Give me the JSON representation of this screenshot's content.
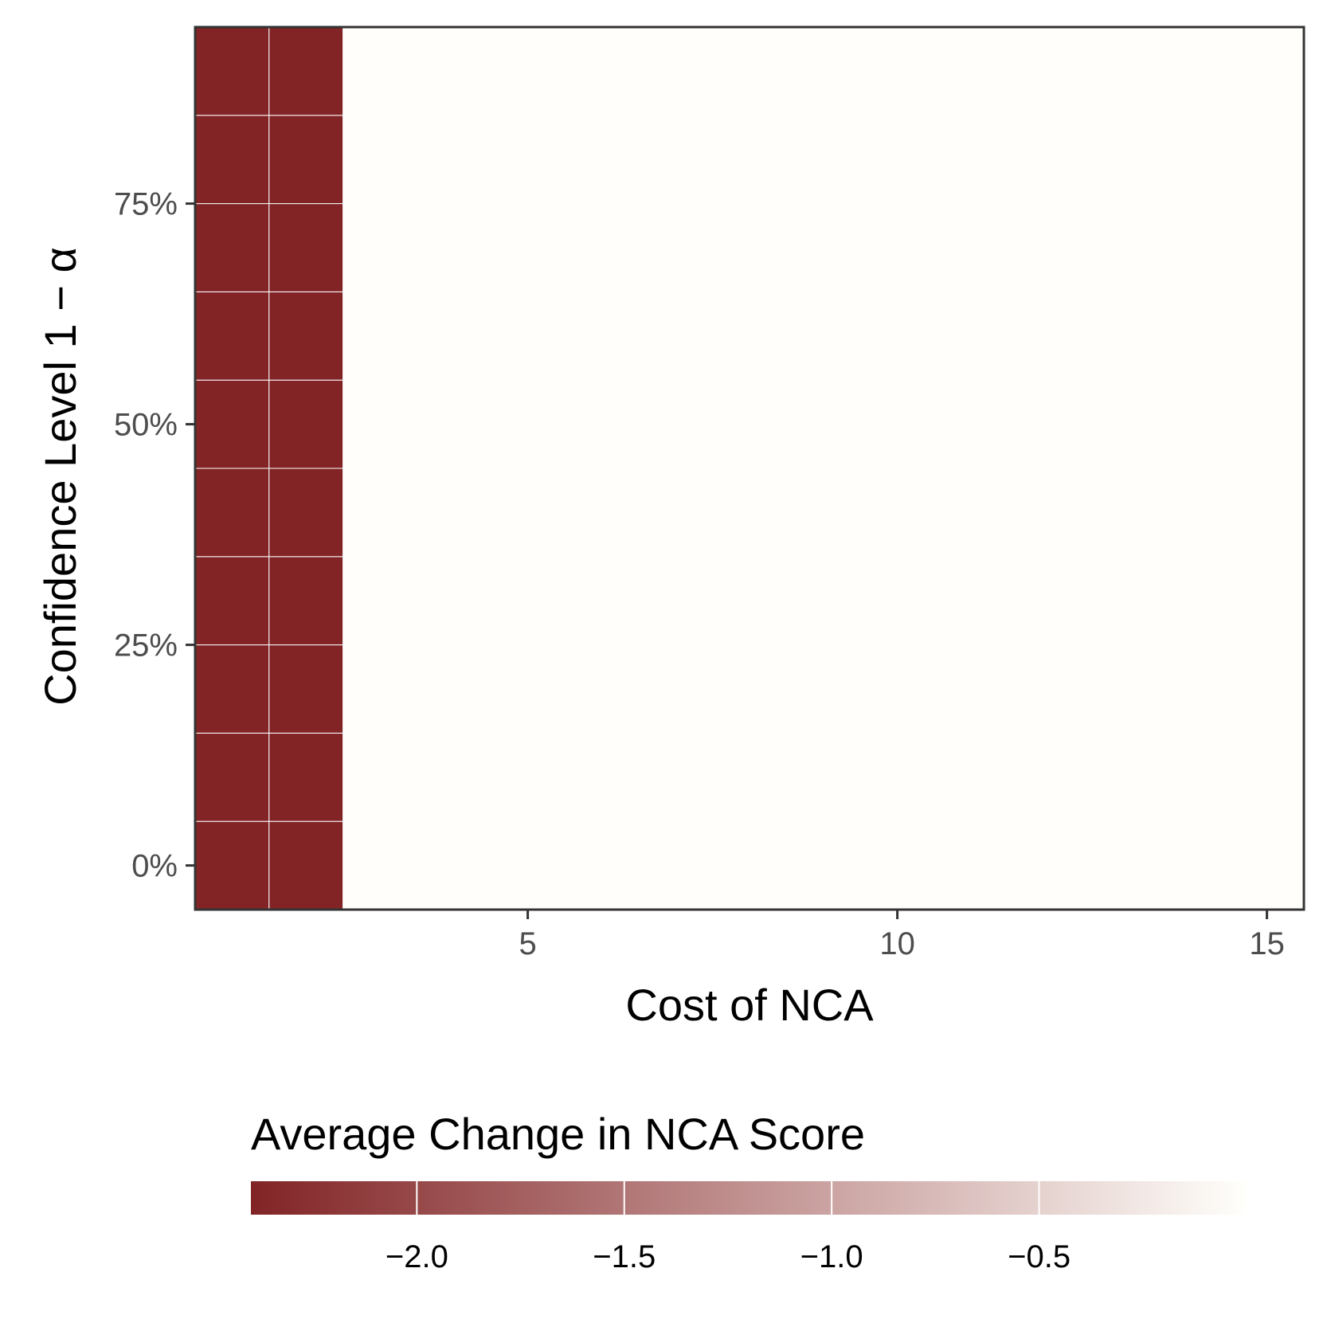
{
  "chart_data": {
    "type": "heatmap",
    "title": "",
    "xlabel": "Cost of NCA",
    "ylabel": "Confidence Level 1 − α",
    "xlim": [
      0.5,
      15.5
    ],
    "ylim": [
      -0.05,
      0.95
    ],
    "x_ticks": [
      5,
      10,
      15
    ],
    "x_tick_labels": [
      "5",
      "10",
      "15"
    ],
    "y_ticks": [
      0,
      0.25,
      0.5,
      0.75
    ],
    "y_tick_labels": [
      "0%",
      "25%",
      "50%",
      "75%"
    ],
    "x": [
      1,
      2
    ],
    "y": [
      0,
      0.1,
      0.2,
      0.3,
      0.4,
      0.5,
      0.6,
      0.7,
      0.8,
      0.9
    ],
    "values": [
      [
        -2.4,
        -2.4
      ],
      [
        -2.4,
        -2.4
      ],
      [
        -2.4,
        -2.4
      ],
      [
        -2.4,
        -2.4
      ],
      [
        -2.4,
        -2.4
      ],
      [
        -2.4,
        -2.4
      ],
      [
        -2.4,
        -2.4
      ],
      [
        -2.4,
        -2.4
      ],
      [
        -2.4,
        -2.4
      ],
      [
        -2.4,
        -2.4
      ]
    ],
    "background_value": 0,
    "colorbar": {
      "title": "Average Change in NCA Score",
      "range": [
        -2.4,
        0
      ],
      "ticks": [
        -2.0,
        -1.5,
        -1.0,
        -0.5
      ],
      "tick_labels": [
        "−2.0",
        "−1.5",
        "−1.0",
        "−0.5"
      ],
      "low_color": "#822426",
      "high_color": "#fffffb",
      "placement": "bottom"
    },
    "grid": false,
    "colors": {
      "panel_background": "#fffefb",
      "panel_border": "#333333",
      "tile_border": "#ffffff"
    }
  }
}
